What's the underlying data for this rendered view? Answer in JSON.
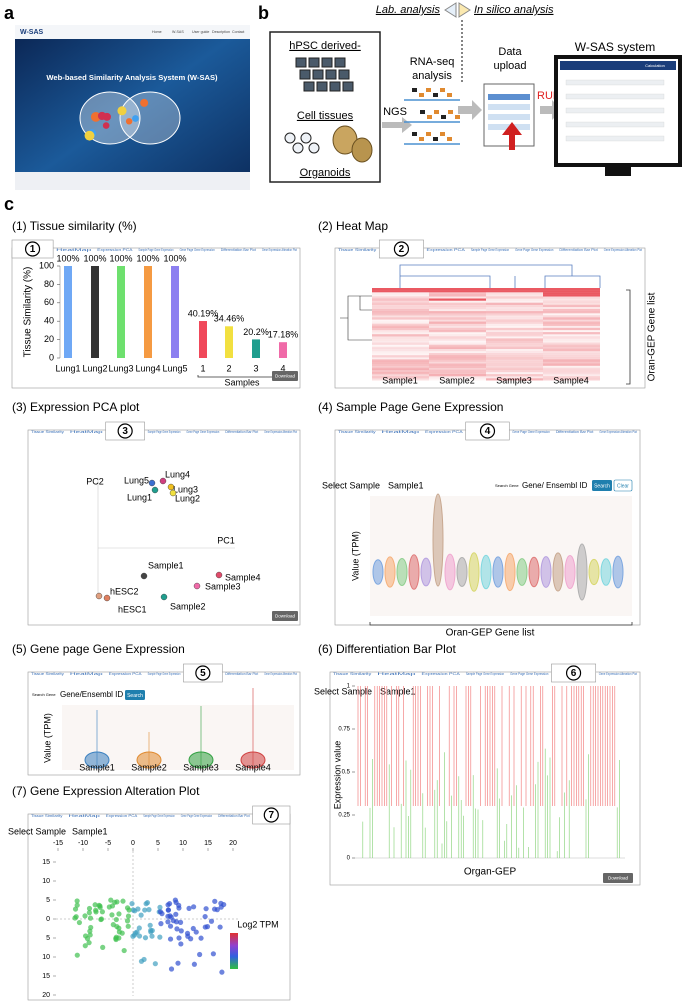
{
  "panel_a": {
    "label": "a",
    "logo": "W-SAS",
    "nav": [
      "Home",
      "W-SAS",
      "User guide",
      "Description",
      "Contact"
    ],
    "title": "Web-based Similarity Analysis System (W-SAS)"
  },
  "panel_b": {
    "label": "b",
    "lab": "Lab. analysis",
    "insilico": "In silico analysis",
    "derived": "hPSC derived-",
    "cells": "Cell tissues",
    "organoids": "Organoids",
    "ngs": "NGS",
    "rnaseq": "RNA-seq",
    "analysis": "analysis",
    "data": "Data",
    "upload": "upload",
    "run": "RUN",
    "system": "W-SAS system",
    "screen_title": "Calculation"
  },
  "panel_c": {
    "label": "c",
    "tabs": [
      "Tissue Similarity",
      "HeatMap",
      "Expression PCA",
      "Sample Page Gene Expression",
      "Gene Page Gene Expression",
      "Differentiation Bar Plot",
      "Gene Expression Alteration Plot"
    ],
    "tissue": {
      "heading": "(1) Tissue similarity (%)",
      "number": "1",
      "button": "Download",
      "chart": {
        "type": "bar",
        "categories": [
          "Lung1",
          "Lung2",
          "Lung3",
          "Lung4",
          "Lung5",
          "1",
          "2",
          "3",
          "4"
        ],
        "values": [
          100,
          100,
          100,
          100,
          100,
          40.19,
          34.46,
          20.2,
          17.18
        ],
        "value_labels": [
          "100%",
          "100%",
          "100%",
          "100%",
          "100%",
          "40.19%",
          "34.46%",
          "20.2%",
          "17.18%"
        ],
        "colors": [
          "#6fa8f5",
          "#333333",
          "#6ee06e",
          "#f59a42",
          "#8c7ff0",
          "#f0485a",
          "#f2e040",
          "#1f9e8e",
          "#f06aa8"
        ],
        "ylabel": "Tissue Similarity (%)",
        "xlabel": "Samples",
        "ylim": [
          0,
          100
        ],
        "yticks": [
          0,
          20,
          40,
          60,
          80,
          100
        ]
      }
    },
    "heatmap": {
      "heading": "(2) Heat Map",
      "number": "2",
      "samples": [
        "Sample1",
        "Sample2",
        "Sample3",
        "Sample4"
      ],
      "gene_list": "Oran-GEP Gene list"
    },
    "pca": {
      "heading": "(3) Expression PCA plot",
      "number": "3",
      "pc1": "PC1",
      "pc2": "PC2",
      "button": "Download",
      "points": [
        "Lung5",
        "Lung4",
        "Lung3",
        "Lung1",
        "Lung2",
        "hESC2",
        "hESC1",
        "Sample1",
        "Sample2",
        "Sample3",
        "Sample4"
      ]
    },
    "sample_page": {
      "heading": "(4) Sample Page Gene Expression",
      "number": "4",
      "select": "Select Sample",
      "sample": "Sample1",
      "search_gene": "Search Gene",
      "gene_id": "Gene/ Ensembl ID",
      "search": "Search",
      "clear": "Clear",
      "ylabel": "Value (TPM)",
      "gene_list": "Oran-GEP Gene list"
    },
    "gene_page": {
      "heading": "(5) Gene page Gene Expression",
      "number": "5",
      "search_gene": "Search Gene",
      "gene_id": "Gene/Ensembl ID",
      "search": "Search",
      "ylabel": "Value (TPM)",
      "samples": [
        "Sample1",
        "Sample2",
        "Sample3",
        "Sample4"
      ]
    },
    "diff": {
      "heading": "(6) Differentiation Bar Plot",
      "number": "6",
      "select": "Select Sample",
      "sample": "Sample1",
      "ylabel": "Expression value",
      "xlabel": "Organ-GEP",
      "button": "Download",
      "ylim": [
        0,
        1
      ],
      "yticks": [
        0,
        0.25,
        0.5,
        0.75,
        1
      ]
    },
    "alteration": {
      "heading": "(7) Gene Expression Alteration Plot",
      "number": "7",
      "select": "Select Sample",
      "sample": "Sample1",
      "legend": "Log2 TPM",
      "xlim": [
        -15,
        20
      ],
      "xticks": [
        -15,
        -10,
        -5,
        0,
        5,
        10,
        15,
        20
      ],
      "ylim": [
        -20,
        15
      ],
      "yticks": [
        15,
        10,
        5,
        0,
        {
          "value": -5,
          "label": "5"
        },
        {
          "value": -10,
          "label": "10"
        },
        {
          "value": -15,
          "label": "15"
        },
        {
          "value": -20,
          "label": "20"
        }
      ]
    }
  }
}
